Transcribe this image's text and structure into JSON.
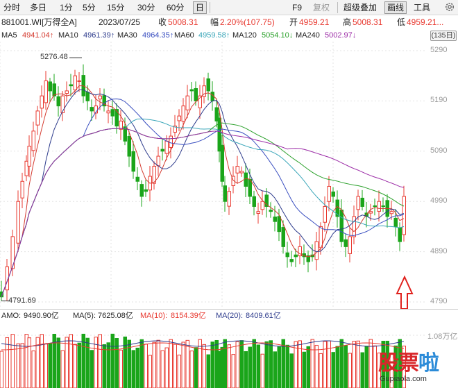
{
  "toolbar": {
    "items": [
      "分时",
      "多日",
      "1分",
      "5分",
      "15分",
      "30分",
      "60分",
      "日",
      "F9",
      "复权",
      "超级叠加",
      "画线",
      "工具"
    ],
    "active": "日",
    "disabled": [
      "复权"
    ]
  },
  "info": {
    "code": "881001.WI[万得全A]",
    "date": "2023/07/25",
    "close_label": "收",
    "close_value": "5008.31",
    "change_label": "幅",
    "change_value": "2.20%(107.75)",
    "open_label": "开",
    "open_value": "4959.21",
    "high_label": "高",
    "high_value": "5008.31",
    "low_label": "低",
    "low_value": "4959.21..."
  },
  "ma_legend": [
    {
      "label": "MA5",
      "value": "4941.04↑",
      "color": "#d43a2f"
    },
    {
      "label": "MA10",
      "value": "4961.39↑",
      "color": "#2d3b8c"
    },
    {
      "label": "MA30",
      "value": "4964.35↑",
      "color": "#3a4fc0"
    },
    {
      "label": "MA60",
      "value": "4959.58↑",
      "color": "#3aa6b9"
    },
    {
      "label": "MA120",
      "value": "5054.10↓",
      "color": "#2aa02a"
    },
    {
      "label": "MA240",
      "value": "5002.97↓",
      "color": "#9b2aa6"
    }
  ],
  "period_button": "(135日)",
  "price_axis": [
    "5290",
    "5190",
    "5090",
    "4990",
    "4890",
    "4790"
  ],
  "peak_high_label": "5276.48",
  "peak_low_label": "4791.69",
  "volume": {
    "amo_label": "AMO:",
    "amo_value": "9490.90亿",
    "ma5_label": "MA(5):",
    "ma5_value": "7625.08亿",
    "ma10_label": "MA(10):",
    "ma10_value": "8154.39亿",
    "ma20_label": "MA(20):",
    "ma20_value": "8409.61亿",
    "axis_label": "1.08万亿"
  },
  "watermark": {
    "big_1": "股",
    "big_2": "票",
    "big_3": "啦",
    "small": "Gupiaola.com"
  },
  "colors": {
    "up": "#e8382f",
    "down": "#1aa51a",
    "grid": "#e3e3e3",
    "arrow": "#e0201c"
  }
}
